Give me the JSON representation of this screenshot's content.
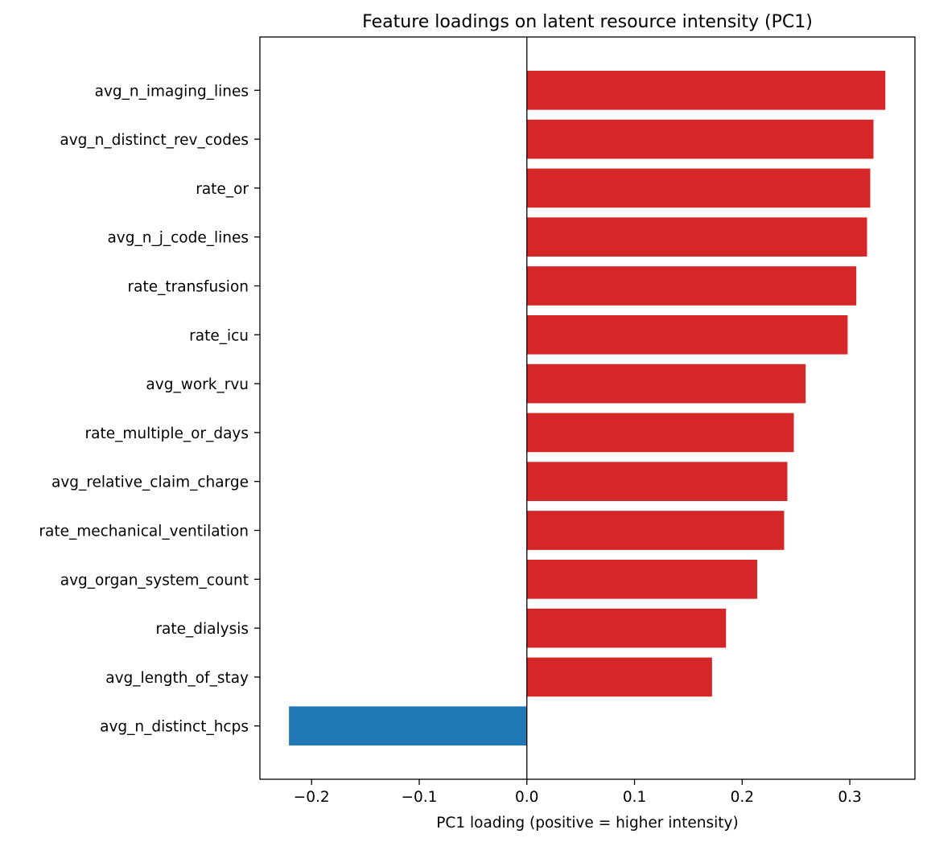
{
  "chart_data": {
    "type": "bar",
    "orientation": "horizontal",
    "title": "Feature loadings on latent resource intensity (PC1)",
    "xlabel": "PC1 loading (positive = higher intensity)",
    "ylabel": "",
    "xlim": [
      -0.248,
      0.3605
    ],
    "xticks": [
      -0.2,
      -0.1,
      0.0,
      0.1,
      0.2,
      0.3
    ],
    "xtick_labels": [
      "−0.2",
      "−0.1",
      "0.0",
      "0.1",
      "0.2",
      "0.3"
    ],
    "grid": false,
    "zero_line": true,
    "colors": {
      "positive": "#d62728",
      "negative": "#1f77b4"
    },
    "categories": [
      "avg_n_imaging_lines",
      "avg_n_distinct_rev_codes",
      "rate_or",
      "avg_n_j_code_lines",
      "rate_transfusion",
      "rate_icu",
      "avg_work_rvu",
      "rate_multiple_or_days",
      "avg_relative_claim_charge",
      "rate_mechanical_ventilation",
      "avg_organ_system_count",
      "rate_dialysis",
      "avg_length_of_stay",
      "avg_n_distinct_hcps"
    ],
    "values": [
      0.333,
      0.322,
      0.319,
      0.316,
      0.306,
      0.298,
      0.259,
      0.248,
      0.242,
      0.239,
      0.214,
      0.185,
      0.172,
      -0.221
    ]
  }
}
